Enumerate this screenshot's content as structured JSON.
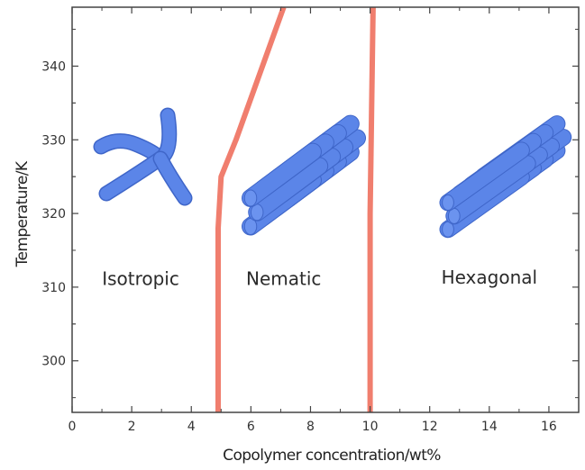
{
  "chart_data": {
    "type": "line",
    "title": "",
    "xlabel": "Copolymer concentration/wt%",
    "ylabel": "Temperature/K",
    "xlim": [
      0,
      17
    ],
    "ylim": [
      293,
      348
    ],
    "x_ticks": [
      0,
      2,
      4,
      6,
      8,
      10,
      12,
      14,
      16
    ],
    "y_ticks": [
      300,
      310,
      320,
      330,
      340
    ],
    "grid": false,
    "series": [
      {
        "x": [
          4.9,
          4.9,
          5.0,
          5.5,
          7.1
        ],
        "y": [
          293,
          318,
          325,
          330,
          348
        ]
      },
      {
        "x": [
          10.0,
          10.0,
          10.1
        ],
        "y": [
          293,
          320,
          348
        ]
      }
    ],
    "region_labels": [
      {
        "text": "Isotropic",
        "x": 2.3,
        "y": 310.3
      },
      {
        "text": "Nematic",
        "x": 7.1,
        "y": 310.3
      },
      {
        "text": "Hexagonal",
        "x": 14.0,
        "y": 310.5
      }
    ],
    "line_color": "#f07e6e",
    "glyph_color": "#5b85e8"
  }
}
